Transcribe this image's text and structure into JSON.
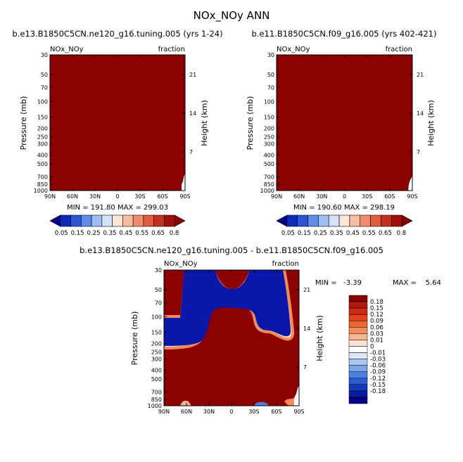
{
  "title": "NOx_NOy ANN",
  "chart_data": [
    {
      "type": "heatmap",
      "id": "left",
      "title": "b.e13.B1850C5CN.ne120_g16.tuning.005 (yrs 1-24)",
      "variable": "NOx_NOy",
      "units": "fraction",
      "ylabel": "Pressure (mb)",
      "ylabel_right": "Height (km)",
      "xticks": [
        "90N",
        "60N",
        "30N",
        "0",
        "30S",
        "60S",
        "90S"
      ],
      "yticks": [
        "30",
        "50",
        "70",
        "100",
        "150",
        "200",
        "250",
        "300",
        "400",
        "500",
        "700",
        "850",
        "1000"
      ],
      "yticks_right": [
        "21",
        "14",
        "7"
      ],
      "minmax_text": "MIN = 191.80   MAX = 299.03",
      "field_color": "#8b0000"
    },
    {
      "type": "heatmap",
      "id": "right",
      "title": "b.e11.B1850C5CN.f09_g16.005 (yrs 402-421)",
      "variable": "NOx_NOy",
      "units": "fraction",
      "ylabel": "Pressure (mb)",
      "ylabel_right": "Height (km)",
      "xticks": [
        "90N",
        "60N",
        "30N",
        "0",
        "30S",
        "60S",
        "90S"
      ],
      "yticks": [
        "30",
        "50",
        "70",
        "100",
        "150",
        "200",
        "250",
        "300",
        "400",
        "500",
        "700",
        "850",
        "1000"
      ],
      "yticks_right": [
        "21",
        "14",
        "7"
      ],
      "minmax_text": "MIN = 190.60   MAX = 298.19",
      "field_color": "#8b0000"
    },
    {
      "type": "heatmap",
      "id": "diff",
      "title": "b.e13.B1850C5CN.ne120_g16.tuning.005 - b.e11.B1850C5CN.f09_g16.005",
      "variable": "NOx_NOy",
      "units": "fraction",
      "ylabel": "Pressure (mb)",
      "ylabel_right": "Height (km)",
      "xticks": [
        "90N",
        "60N",
        "30N",
        "0",
        "30S",
        "60S",
        "90S"
      ],
      "yticks": [
        "30",
        "50",
        "70",
        "100",
        "150",
        "200",
        "250",
        "300",
        "400",
        "500",
        "700",
        "850",
        "1000"
      ],
      "yticks_right": [
        "21",
        "14",
        "7"
      ],
      "min_text": "MIN =   -3.39",
      "max_text": "MAX =    5.64",
      "field_color": "#8b0000",
      "negative_color": "#0a17a8"
    }
  ],
  "colorbar_abs": {
    "labels": [
      "0.05",
      "0.15",
      "0.25",
      "0.35",
      "0.45",
      "0.55",
      "0.65",
      "0.8"
    ],
    "colors": [
      "#00008b",
      "#0d2bb8",
      "#2a56d6",
      "#5f8ce8",
      "#9dbdf3",
      "#d2e2f8",
      "#fbe6d8",
      "#f8bca0",
      "#f18c6c",
      "#e25c3c",
      "#c4301e",
      "#a1110b",
      "#8b0000"
    ]
  },
  "colorbar_diff": {
    "labels": [
      "0.18",
      "0.15",
      "0.12",
      "0.09",
      "0.06",
      "0.03",
      "0.01",
      "0",
      "-0.01",
      "-0.03",
      "-0.06",
      "-0.09",
      "-0.12",
      "-0.15",
      "-0.18"
    ],
    "colors": [
      "#8b0000",
      "#b01a0e",
      "#cc2a16",
      "#e0421f",
      "#ec6633",
      "#f38a58",
      "#f8b693",
      "#fbe2d2",
      "#ffffff",
      "#dce8f8",
      "#a9c5f1",
      "#7aa4ea",
      "#4d80e0",
      "#2a5cd2",
      "#1439bd",
      "#0a1ca0",
      "#00008b"
    ]
  }
}
